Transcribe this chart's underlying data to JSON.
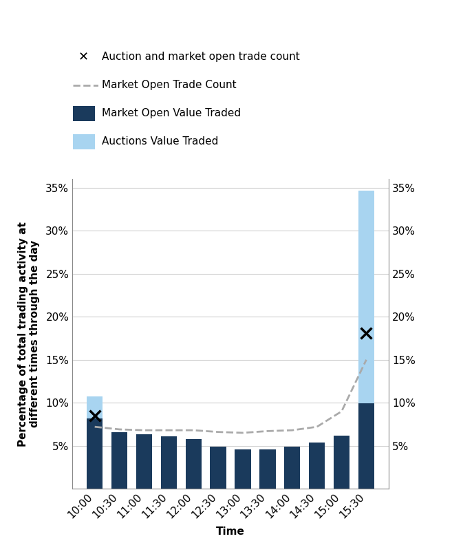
{
  "times": [
    "10:00",
    "10:30",
    "11:00",
    "11:30",
    "12:00",
    "12:30",
    "13:00",
    "13:30",
    "14:00",
    "14:30",
    "15:00",
    "15:30"
  ],
  "market_open_value": [
    8.2,
    6.6,
    6.3,
    6.1,
    5.8,
    4.9,
    4.6,
    4.6,
    4.9,
    5.4,
    6.2,
    9.9
  ],
  "auction_value": [
    2.5,
    0,
    0,
    0,
    0,
    0,
    0,
    0,
    0,
    0,
    0,
    24.8
  ],
  "market_open_trade_count": [
    7.2,
    6.9,
    6.8,
    6.8,
    6.8,
    6.6,
    6.5,
    6.7,
    6.8,
    7.2,
    9.0,
    15.0
  ],
  "auction_trade_count_x": [
    8.5,
    null,
    null,
    null,
    null,
    null,
    null,
    null,
    null,
    null,
    null,
    18.1
  ],
  "market_open_value_color": "#1a3a5c",
  "auction_value_color": "#a8d4f0",
  "dashed_line_color": "#aaaaaa",
  "x_label": "Time",
  "y_label": "Percentage of total trading activity at\ndifferent times through the day",
  "ylim_max": 0.36,
  "yticks": [
    0.05,
    0.1,
    0.15,
    0.2,
    0.25,
    0.3,
    0.35
  ],
  "legend_x_label": "Auction and market open trade count",
  "legend_dash_label": "Market Open Trade Count",
  "legend_dark_label": "Market Open Value Traded",
  "legend_light_label": "Auctions Value Traded",
  "bg_color": "#f5f5f5",
  "title_fontsize": 11,
  "axis_fontsize": 11,
  "tick_fontsize": 11
}
